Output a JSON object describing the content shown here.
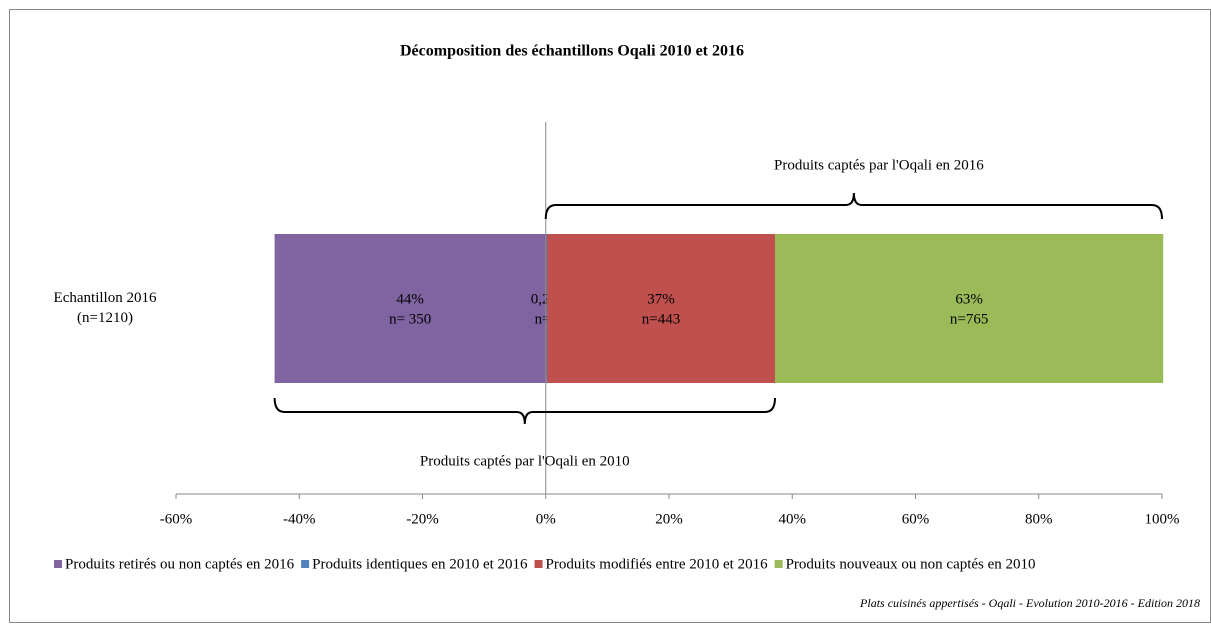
{
  "chart_data": {
    "type": "bar",
    "orientation": "horizontal",
    "stacked": true,
    "title": "Décomposition des échantillons Oqali 2010 et 2016",
    "categories": [
      "Echantillon 2016 (n=1210)"
    ],
    "series": [
      {
        "name": "Produits retirés ou non captés en 2016",
        "color": "#8064a2",
        "values": [
          -44
        ],
        "value_labels": [
          "44%"
        ],
        "n_labels": [
          "n= 350"
        ]
      },
      {
        "name": "Produits identiques en 2010 et 2016",
        "color": "#4f81bd",
        "values": [
          0.2
        ],
        "value_labels": [
          "0,2%"
        ],
        "n_labels": [
          "n=2"
        ]
      },
      {
        "name": "Produits modifiés entre 2010 et 2016",
        "color": "#c0504d",
        "values": [
          37
        ],
        "value_labels": [
          "37%"
        ],
        "n_labels": [
          "n=443"
        ]
      },
      {
        "name": "Produits nouveaux ou non captés en 2010",
        "color": "#9bbb59",
        "values": [
          63
        ],
        "value_labels": [
          "63%"
        ],
        "n_labels": [
          "n=765"
        ]
      }
    ],
    "xlim": [
      -60,
      100
    ],
    "xticks": [
      {
        "value": -60,
        "label": "-60%"
      },
      {
        "value": -40,
        "label": "-40%"
      },
      {
        "value": -20,
        "label": "-20%"
      },
      {
        "value": 0,
        "label": "0%"
      },
      {
        "value": 20,
        "label": "20%"
      },
      {
        "value": 40,
        "label": "40%"
      },
      {
        "value": 60,
        "label": "60%"
      },
      {
        "value": 80,
        "label": "80%"
      },
      {
        "value": 100,
        "label": "100%"
      }
    ],
    "annotations": [
      {
        "text": "Produits captés par l'Oqali en 2016",
        "span": [
          0,
          100
        ],
        "side": "top"
      },
      {
        "text": "Produits captés par l'Oqali en 2010",
        "span": [
          -44,
          37.2
        ],
        "side": "bottom"
      }
    ],
    "legend": "bottom",
    "source": "Plats cuisinés appertisés - Oqali - Evolution 2010-2016 - Edition 2018"
  }
}
